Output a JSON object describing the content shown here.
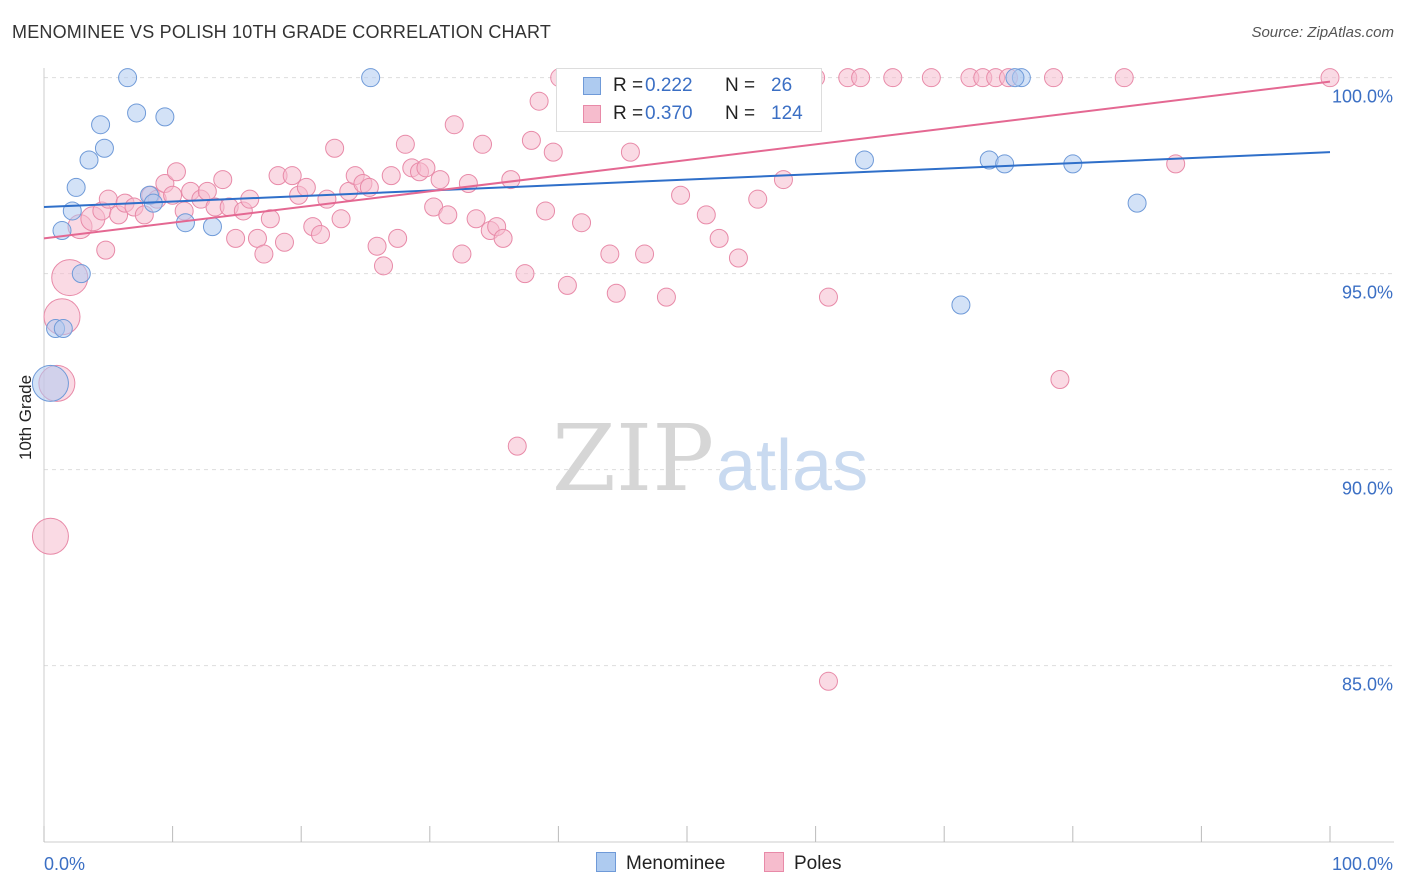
{
  "title": "MENOMINEE VS POLISH 10TH GRADE CORRELATION CHART",
  "source": "Source: ZipAtlas.com",
  "watermark": {
    "part1": "ZIP",
    "part2": "atlas"
  },
  "colors": {
    "menominee_fill": "#aecbf0",
    "menominee_stroke": "#6f9ad8",
    "menominee_line": "#2f6fc9",
    "poles_fill": "#f6bccd",
    "poles_stroke": "#e88aa8",
    "poles_line": "#e46892",
    "axis_text": "#3b6fc4",
    "grid": "#dddddd"
  },
  "legend": {
    "rows": [
      {
        "label": "R =",
        "r": "0.222",
        "n_label": "N =",
        "n": "26"
      },
      {
        "label": "R =",
        "r": "0.370",
        "n_label": "N =",
        "n": "124"
      }
    ]
  },
  "bottom_legend": {
    "series1": "Menominee",
    "series2": "Poles"
  },
  "chart_data": {
    "type": "scatter",
    "title": "MENOMINEE VS POLISH 10TH GRADE CORRELATION CHART",
    "xlabel": "",
    "ylabel": "10th Grade",
    "xlim": [
      0,
      100
    ],
    "ylim": [
      80.5,
      100.4
    ],
    "x_tick_labels": [
      "0.0%",
      "100.0%"
    ],
    "y_ticks": [
      85,
      90,
      95,
      100
    ],
    "y_tick_labels": [
      "85.0%",
      "90.0%",
      "95.0%",
      "100.0%"
    ],
    "grid": true,
    "legend_position": "top-center",
    "series": [
      {
        "name": "Menominee",
        "R": 0.222,
        "N": 26,
        "trend": {
          "x": [
            0,
            100
          ],
          "y": [
            96.7,
            98.1
          ]
        },
        "points": [
          [
            0.5,
            92.2,
            18
          ],
          [
            0.9,
            93.6,
            9
          ],
          [
            1.5,
            93.6,
            9
          ],
          [
            1.4,
            96.1,
            9
          ],
          [
            2.2,
            96.6,
            9
          ],
          [
            2.5,
            97.2,
            9
          ],
          [
            2.9,
            95.0,
            9
          ],
          [
            3.5,
            97.9,
            9
          ],
          [
            4.4,
            98.8,
            9
          ],
          [
            4.7,
            98.2,
            9
          ],
          [
            6.5,
            100.0,
            9
          ],
          [
            7.2,
            99.1,
            9
          ],
          [
            8.2,
            97.0,
            9
          ],
          [
            8.5,
            96.8,
            9
          ],
          [
            9.4,
            99.0,
            9
          ],
          [
            11.0,
            96.3,
            9
          ],
          [
            13.1,
            96.2,
            9
          ],
          [
            25.4,
            100.0,
            9
          ],
          [
            63.8,
            97.9,
            9
          ],
          [
            71.3,
            94.2,
            9
          ],
          [
            73.5,
            97.9,
            9
          ],
          [
            74.7,
            97.8,
            9
          ],
          [
            76.0,
            100.0,
            9
          ],
          [
            80.0,
            97.8,
            9
          ],
          [
            85.0,
            96.8,
            9
          ],
          [
            75.5,
            100.0,
            9
          ]
        ]
      },
      {
        "name": "Poles",
        "R": 0.37,
        "N": 124,
        "trend": {
          "x": [
            0,
            100
          ],
          "y": [
            95.9,
            99.9
          ]
        },
        "points": [
          [
            0.5,
            88.3,
            18
          ],
          [
            1.0,
            92.2,
            18
          ],
          [
            1.4,
            93.9,
            18
          ],
          [
            2.0,
            94.9,
            18
          ],
          [
            2.8,
            96.2,
            12
          ],
          [
            3.8,
            96.4,
            12
          ],
          [
            4.5,
            96.6,
            9
          ],
          [
            4.8,
            95.6,
            9
          ],
          [
            5.0,
            96.9,
            9
          ],
          [
            5.8,
            96.5,
            9
          ],
          [
            6.3,
            96.8,
            9
          ],
          [
            7.0,
            96.7,
            9
          ],
          [
            7.8,
            96.5,
            9
          ],
          [
            8.3,
            97.0,
            9
          ],
          [
            8.8,
            96.9,
            9
          ],
          [
            9.4,
            97.3,
            9
          ],
          [
            10.0,
            97.0,
            9
          ],
          [
            10.3,
            97.6,
            9
          ],
          [
            10.9,
            96.6,
            9
          ],
          [
            11.4,
            97.1,
            9
          ],
          [
            12.2,
            96.9,
            9
          ],
          [
            12.7,
            97.1,
            9
          ],
          [
            13.3,
            96.7,
            9
          ],
          [
            13.9,
            97.4,
            9
          ],
          [
            14.4,
            96.7,
            9
          ],
          [
            14.9,
            95.9,
            9
          ],
          [
            15.5,
            96.6,
            9
          ],
          [
            16.0,
            96.9,
            9
          ],
          [
            16.6,
            95.9,
            9
          ],
          [
            17.1,
            95.5,
            9
          ],
          [
            17.6,
            96.4,
            9
          ],
          [
            18.2,
            97.5,
            9
          ],
          [
            18.7,
            95.8,
            9
          ],
          [
            19.3,
            97.5,
            9
          ],
          [
            19.8,
            97.0,
            9
          ],
          [
            20.4,
            97.2,
            9
          ],
          [
            20.9,
            96.2,
            9
          ],
          [
            21.5,
            96.0,
            9
          ],
          [
            22.0,
            96.9,
            9
          ],
          [
            22.6,
            98.2,
            9
          ],
          [
            23.1,
            96.4,
            9
          ],
          [
            23.7,
            97.1,
            9
          ],
          [
            24.2,
            97.5,
            9
          ],
          [
            24.8,
            97.3,
            9
          ],
          [
            25.3,
            97.2,
            9
          ],
          [
            25.9,
            95.7,
            9
          ],
          [
            26.4,
            95.2,
            9
          ],
          [
            27.0,
            97.5,
            9
          ],
          [
            27.5,
            95.9,
            9
          ],
          [
            28.1,
            98.3,
            9
          ],
          [
            28.6,
            97.7,
            9
          ],
          [
            29.2,
            97.6,
            9
          ],
          [
            29.7,
            97.7,
            9
          ],
          [
            30.3,
            96.7,
            9
          ],
          [
            30.8,
            97.4,
            9
          ],
          [
            31.4,
            96.5,
            9
          ],
          [
            31.9,
            98.8,
            9
          ],
          [
            32.5,
            95.5,
            9
          ],
          [
            33.0,
            97.3,
            9
          ],
          [
            33.6,
            96.4,
            9
          ],
          [
            34.1,
            98.3,
            9
          ],
          [
            34.7,
            96.1,
            9
          ],
          [
            35.2,
            96.2,
            9
          ],
          [
            35.7,
            95.9,
            9
          ],
          [
            36.3,
            97.4,
            9
          ],
          [
            36.8,
            90.6,
            9
          ],
          [
            37.4,
            95.0,
            9
          ],
          [
            37.9,
            98.4,
            9
          ],
          [
            38.5,
            99.4,
            9
          ],
          [
            39.0,
            96.6,
            9
          ],
          [
            39.6,
            98.1,
            9
          ],
          [
            40.1,
            100.0,
            9
          ],
          [
            40.7,
            94.7,
            9
          ],
          [
            41.2,
            100.0,
            9
          ],
          [
            41.8,
            96.3,
            9
          ],
          [
            42.3,
            99.6,
            9
          ],
          [
            42.9,
            100.0,
            9
          ],
          [
            43.4,
            100.0,
            9
          ],
          [
            44.0,
            95.5,
            9
          ],
          [
            44.5,
            94.5,
            9
          ],
          [
            45.1,
            100.0,
            9
          ],
          [
            45.6,
            98.1,
            9
          ],
          [
            46.2,
            100.0,
            9
          ],
          [
            46.7,
            95.5,
            9
          ],
          [
            47.3,
            100.0,
            9
          ],
          [
            47.8,
            100.0,
            9
          ],
          [
            48.4,
            94.4,
            9
          ],
          [
            48.9,
            100.0,
            9
          ],
          [
            49.5,
            97.0,
            9
          ],
          [
            50.0,
            100.0,
            9
          ],
          [
            51.0,
            100.0,
            9
          ],
          [
            52.0,
            100.0,
            9
          ],
          [
            53.0,
            100.0,
            9
          ],
          [
            51.5,
            96.5,
            9
          ],
          [
            52.5,
            95.9,
            9
          ],
          [
            54.0,
            95.4,
            9
          ],
          [
            55.5,
            96.9,
            9
          ],
          [
            57.5,
            97.4,
            9
          ],
          [
            58.0,
            100.0,
            9
          ],
          [
            59.0,
            100.0,
            9
          ],
          [
            60.0,
            100.0,
            9
          ],
          [
            61.0,
            94.4,
            9
          ],
          [
            61.0,
            84.6,
            9
          ],
          [
            62.5,
            100.0,
            9
          ],
          [
            63.5,
            100.0,
            9
          ],
          [
            66.0,
            100.0,
            9
          ],
          [
            69.0,
            100.0,
            9
          ],
          [
            72.0,
            100.0,
            9
          ],
          [
            73.0,
            100.0,
            9
          ],
          [
            74.0,
            100.0,
            9
          ],
          [
            75.0,
            100.0,
            9
          ],
          [
            78.5,
            100.0,
            9
          ],
          [
            79.0,
            92.3,
            9
          ],
          [
            84.0,
            100.0,
            9
          ],
          [
            88.0,
            97.8,
            9
          ],
          [
            100.0,
            100.0,
            9
          ],
          [
            43.6,
            99.5,
            9
          ],
          [
            44.2,
            100.0,
            9
          ],
          [
            54.8,
            100.0,
            9
          ],
          [
            56.5,
            100.0,
            9
          ]
        ]
      }
    ]
  }
}
